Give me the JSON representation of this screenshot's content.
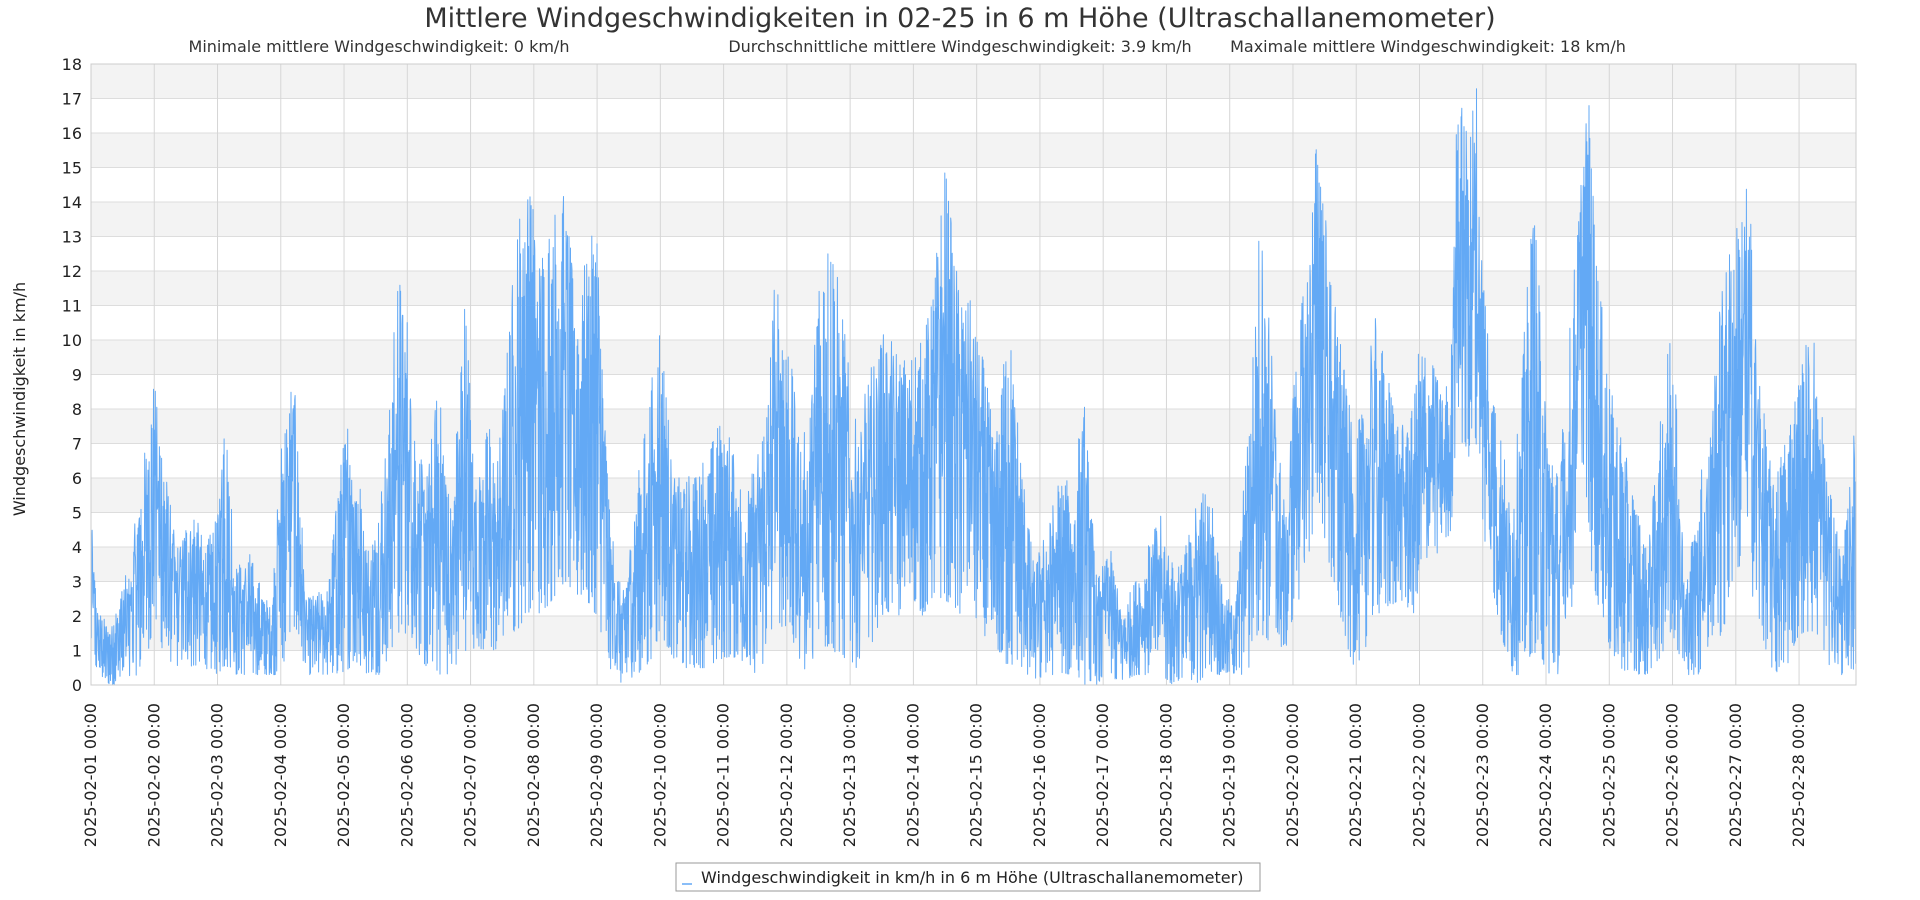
{
  "chart_data": {
    "type": "line",
    "title": "Mittlere Windgeschwindigkeiten in 02-25 in 6 m Höhe (Ultraschallanemometer)",
    "subtitle": {
      "min": "Minimale mittlere Windgeschwindigkeit: 0 km/h",
      "avg": "Durchschnittliche mittlere Windgeschwindigkeit: 3.9 km/h",
      "max": "Maximale mittlere Windgeschwindigkeit: 18 km/h"
    },
    "xlabel": "",
    "ylabel": "Windgeschwindigkeit in km/h",
    "ylim": [
      0,
      18
    ],
    "y_ticks": [
      0,
      1,
      2,
      3,
      4,
      5,
      6,
      7,
      8,
      9,
      10,
      11,
      12,
      13,
      14,
      15,
      16,
      17,
      18
    ],
    "x_range_days": [
      0,
      28
    ],
    "x_ticks": [
      "2025-02-01 00:00",
      "2025-02-02 00:00",
      "2025-02-03 00:00",
      "2025-02-04 00:00",
      "2025-02-05 00:00",
      "2025-02-06 00:00",
      "2025-02-07 00:00",
      "2025-02-08 00:00",
      "2025-02-09 00:00",
      "2025-02-10 00:00",
      "2025-02-11 00:00",
      "2025-02-12 00:00",
      "2025-02-13 00:00",
      "2025-02-14 00:00",
      "2025-02-15 00:00",
      "2025-02-16 00:00",
      "2025-02-17 00:00",
      "2025-02-18 00:00",
      "2025-02-19 00:00",
      "2025-02-20 00:00",
      "2025-02-21 00:00",
      "2025-02-22 00:00",
      "2025-02-23 00:00",
      "2025-02-24 00:00",
      "2025-02-25 00:00",
      "2025-02-26 00:00",
      "2025-02-27 00:00",
      "2025-02-28 00:00"
    ],
    "grid": true,
    "legend_position": "bottom-center",
    "series": [
      {
        "name": "Windgeschwindigkeit in km/h in 6 m Höhe (Ultraschallanemometer)",
        "color": "#63a9f5",
        "envelope": {
          "x": [
            0,
            0.1,
            0.3,
            0.6,
            0.8,
            1.0,
            1.2,
            1.35,
            1.5,
            1.6,
            1.8,
            2.0,
            2.1,
            2.3,
            2.5,
            2.7,
            2.85,
            3.0,
            3.2,
            3.4,
            3.6,
            3.75,
            3.9,
            4.1,
            4.4,
            4.55,
            4.7,
            4.85,
            5.0,
            5.15,
            5.3,
            5.5,
            5.7,
            5.9,
            6.1,
            6.3,
            6.4,
            6.55,
            6.7,
            6.9,
            7.0,
            7.1,
            7.3,
            7.5,
            7.65,
            7.8,
            8.0,
            8.2,
            8.4,
            8.6,
            8.8,
            9.0,
            9.2,
            9.4,
            9.6,
            9.8,
            10.0,
            10.2,
            10.35,
            10.5,
            10.7,
            10.8,
            11.0,
            11.2,
            11.35,
            11.5,
            11.7,
            11.9,
            12.1,
            12.3,
            12.5,
            12.7,
            12.9,
            13.0,
            13.15,
            13.3,
            13.5,
            13.7,
            13.9,
            14.1,
            14.3,
            14.5,
            14.7,
            14.9,
            15.1,
            15.3,
            15.5,
            15.7,
            15.9,
            16.1,
            16.3,
            16.5,
            16.7,
            16.9,
            17.1,
            17.3,
            17.5,
            17.7,
            17.9,
            18.1,
            18.3,
            18.5,
            18.65,
            18.8,
            18.9,
            19.0,
            19.2,
            19.4,
            19.6,
            19.8,
            19.95,
            20.1,
            20.3,
            20.5,
            20.7,
            20.9,
            21.0,
            21.2,
            21.4,
            21.5,
            21.6,
            21.75,
            21.9,
            22.0,
            22.2,
            22.35,
            22.45,
            22.6,
            22.8,
            23.0,
            23.2,
            23.4,
            23.5,
            23.6,
            23.7,
            23.8,
            24.0,
            24.2,
            24.4,
            24.6,
            24.8,
            25.0,
            25.2,
            25.4,
            25.6,
            25.8,
            26.0,
            26.2,
            26.4,
            26.6,
            26.8,
            27.0,
            27.2,
            27.4,
            27.5,
            27.7,
            27.9,
            28.0
          ],
          "max": [
            5.0,
            2.2,
            1.7,
            3.5,
            6.1,
            9.0,
            6.0,
            4.0,
            4.8,
            5.4,
            4.0,
            4.9,
            8.6,
            3.5,
            3.9,
            2.8,
            2.2,
            7.0,
            9.3,
            2.5,
            2.7,
            2.8,
            5.9,
            8.3,
            3.8,
            5.4,
            7.5,
            12.2,
            10.8,
            7.0,
            6.0,
            9.0,
            5.0,
            11.5,
            6.0,
            7.8,
            6.0,
            9.0,
            12.8,
            15.4,
            14.0,
            12.6,
            13.8,
            14.7,
            11.0,
            12.2,
            13.6,
            4.9,
            2.5,
            5.5,
            8.0,
            10.8,
            6.1,
            6.0,
            6.5,
            7.0,
            8.0,
            6.5,
            5.5,
            6.5,
            8.5,
            11.8,
            10.5,
            7.2,
            7.5,
            12.3,
            13.3,
            10.5,
            7.5,
            9.0,
            10.5,
            9.8,
            9.5,
            9.8,
            10.0,
            11.5,
            15.1,
            12.0,
            11.2,
            9.5,
            7.0,
            10.8,
            6.8,
            3.5,
            4.5,
            6.0,
            5.9,
            8.3,
            3.0,
            4.1,
            2.2,
            3.0,
            4.0,
            5.0,
            3.5,
            4.0,
            5.6,
            5.8,
            2.5,
            2.5,
            8.0,
            14.4,
            10.5,
            6.5,
            4.7,
            9.2,
            12.0,
            16.6,
            12.0,
            9.5,
            7.2,
            8.0,
            10.8,
            9.0,
            7.5,
            8.0,
            10.0,
            9.5,
            8.5,
            9.5,
            18.0,
            16.0,
            17.6,
            12.5,
            8.5,
            6.5,
            5.0,
            8.6,
            14.4,
            8.2,
            6.0,
            11.0,
            13.5,
            16.6,
            16.9,
            12.5,
            8.8,
            7.2,
            5.5,
            3.8,
            7.5,
            11.2,
            2.8,
            5.5,
            8.3,
            12.2,
            13.3,
            14.7,
            8.5,
            5.8,
            7.5,
            9.0,
            10.8,
            7.5,
            5.5,
            4.0,
            8.0,
            13.3,
            14.7,
            12.2,
            10.5
          ],
          "min": [
            1.0,
            0.3,
            0.0,
            0.0,
            0.5,
            1.5,
            0.8,
            0.5,
            0.8,
            0.5,
            0.5,
            0.3,
            0.5,
            0.3,
            0.3,
            0.3,
            0.3,
            0.3,
            1.8,
            0.3,
            0.3,
            0.3,
            0.3,
            0.5,
            0.3,
            0.3,
            0.8,
            1.5,
            1.5,
            1.0,
            0.5,
            0.3,
            0.3,
            1.0,
            1.0,
            1.0,
            1.0,
            1.5,
            1.5,
            2.0,
            2.5,
            2.0,
            2.5,
            3.0,
            2.5,
            2.5,
            2.0,
            0.5,
            0.0,
            0.3,
            0.5,
            1.5,
            0.8,
            0.5,
            0.5,
            0.5,
            0.8,
            0.8,
            0.3,
            0.3,
            0.8,
            2.0,
            1.5,
            0.5,
            0.3,
            1.0,
            1.0,
            0.8,
            0.5,
            1.0,
            2.0,
            2.0,
            2.0,
            2.5,
            2.0,
            2.5,
            2.5,
            2.0,
            2.0,
            1.5,
            1.0,
            0.5,
            0.5,
            0.0,
            0.3,
            0.3,
            0.3,
            0.0,
            0.0,
            0.3,
            0.0,
            0.3,
            0.3,
            0.3,
            0.0,
            0.3,
            0.0,
            0.3,
            0.3,
            0.3,
            0.3,
            1.5,
            1.2,
            1.0,
            1.0,
            2.0,
            3.0,
            5.5,
            3.0,
            1.5,
            0.5,
            0.8,
            2.0,
            2.2,
            2.5,
            2.0,
            3.0,
            3.5,
            4.0,
            4.5,
            7.5,
            6.5,
            7.0,
            4.5,
            2.0,
            1.0,
            0.3,
            0.3,
            1.0,
            0.3,
            0.3,
            2.0,
            5.0,
            6.5,
            3.5,
            2.5,
            1.0,
            0.3,
            0.3,
            0.3,
            0.8,
            1.5,
            0.3,
            0.3,
            0.8,
            1.5,
            3.5,
            3.0,
            1.5,
            0.3,
            0.5,
            1.5,
            1.5,
            1.0,
            0.3,
            0.3,
            0.5,
            2.0,
            4.0,
            4.0,
            3.0
          ]
        }
      }
    ]
  }
}
